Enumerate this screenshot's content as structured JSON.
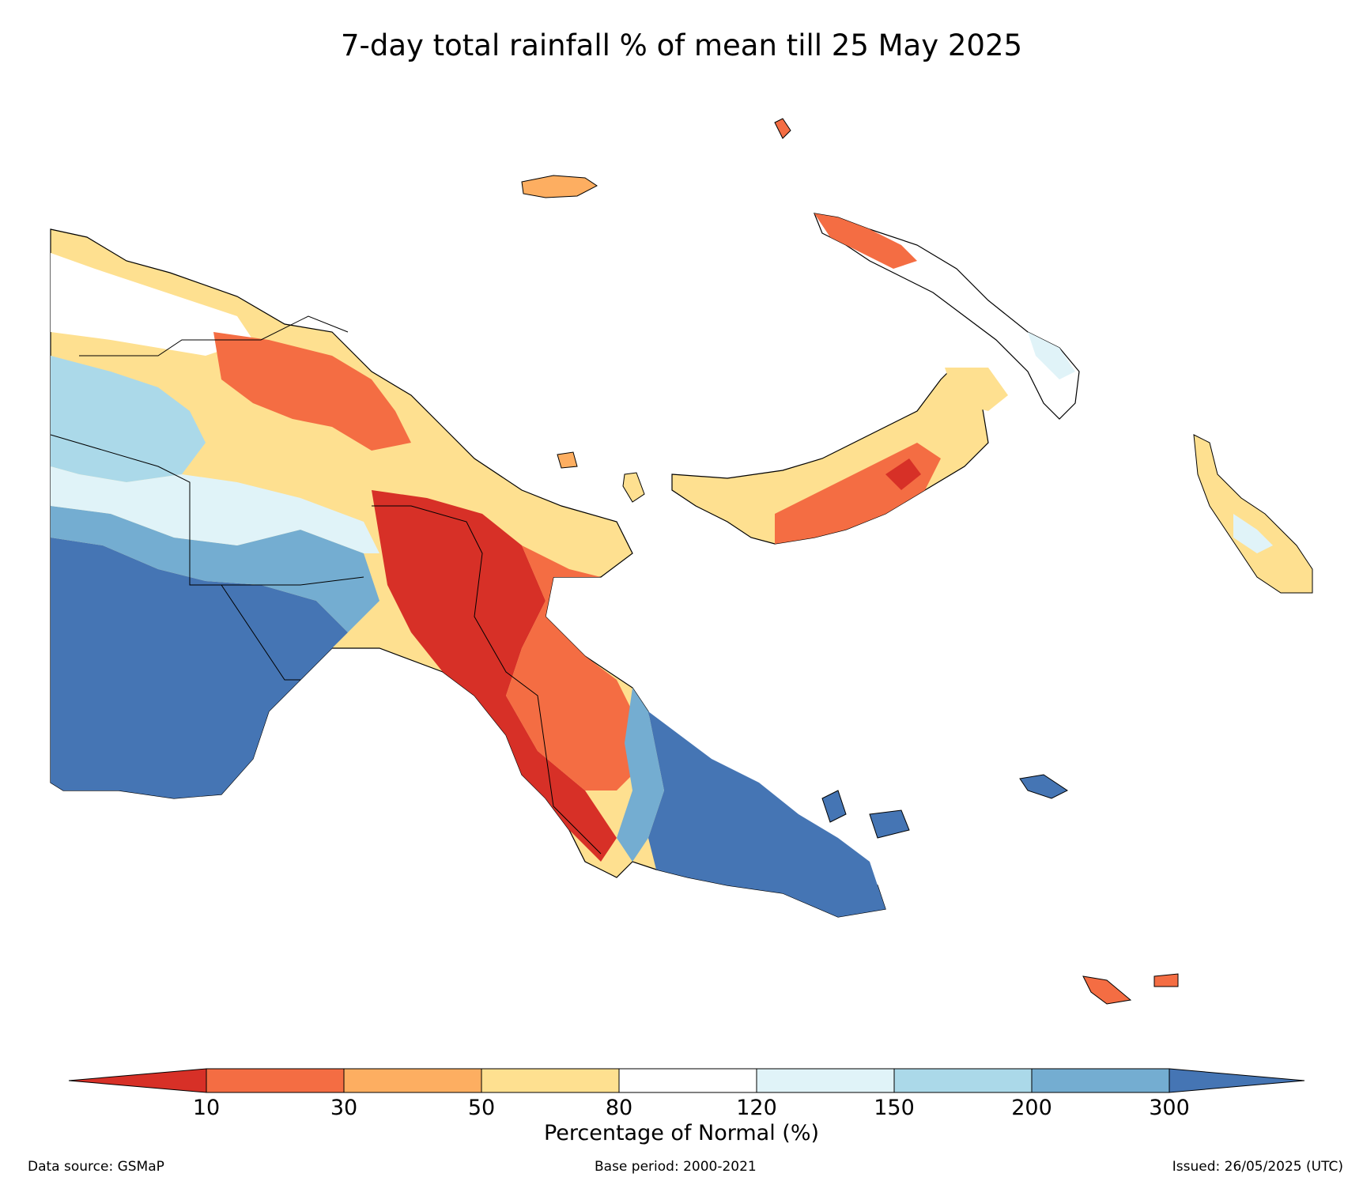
{
  "title": "7-day total rainfall % of mean till 25 May 2025",
  "colorbar": {
    "label": "Percentage of Normal (%)",
    "ticks": [
      "10",
      "30",
      "50",
      "80",
      "120",
      "150",
      "200",
      "300"
    ],
    "colors": [
      "#d73027",
      "#f46d43",
      "#fdae61",
      "#fee090",
      "#ffffff",
      "#e0f3f8",
      "#abd9e9",
      "#74add1",
      "#4575b4"
    ]
  },
  "footer": {
    "source": "Data source: GSMaP",
    "base": "Base period: 2000-2021",
    "issued": "Issued: 26/05/2025 (UTC)"
  }
}
